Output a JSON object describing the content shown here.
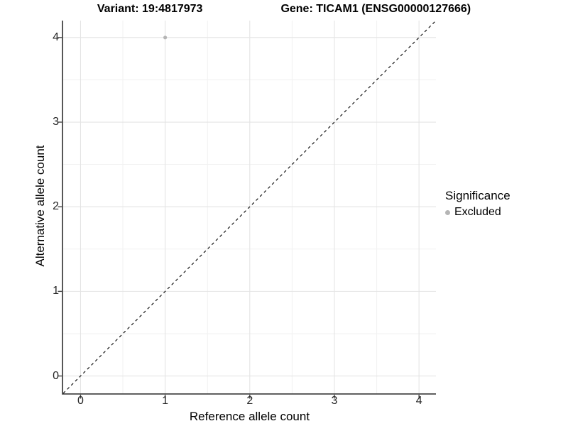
{
  "title": {
    "variant": "Variant: 19:4817973",
    "gene": "Gene: TICAM1 (ENSG00000127666)"
  },
  "chart_data": {
    "type": "scatter",
    "title_left": "Variant: 19:4817973",
    "title_right": "Gene: TICAM1 (ENSG00000127666)",
    "xlabel": "Reference allele count",
    "ylabel": "Alternative allele count",
    "xlim": [
      -0.205,
      4.2
    ],
    "ylim": [
      -0.205,
      4.2
    ],
    "x_major_ticks": [
      0,
      1,
      2,
      3,
      4
    ],
    "y_major_ticks": [
      0,
      1,
      2,
      3,
      4
    ],
    "x_minor_ticks": [
      0.5,
      1.5,
      2.5,
      3.5
    ],
    "y_minor_ticks": [
      0.5,
      1.5,
      2.5,
      3.5
    ],
    "grid": true,
    "points": [
      {
        "x": 1,
        "y": 4,
        "series": "Excluded"
      }
    ],
    "reference_line": {
      "slope": 1,
      "intercept": 0,
      "style": "dashed"
    },
    "legend": {
      "position": "right",
      "title": "Significance",
      "items": [
        {
          "label": "Excluded",
          "color": "#b5b5b5"
        }
      ]
    }
  },
  "colors": {
    "point": "#b5b5b5",
    "grid_major": "#e4e4e4",
    "grid_minor": "#f1f1f1",
    "axis": "#464646",
    "tick": "#464646",
    "dashed_line": "#000000"
  }
}
